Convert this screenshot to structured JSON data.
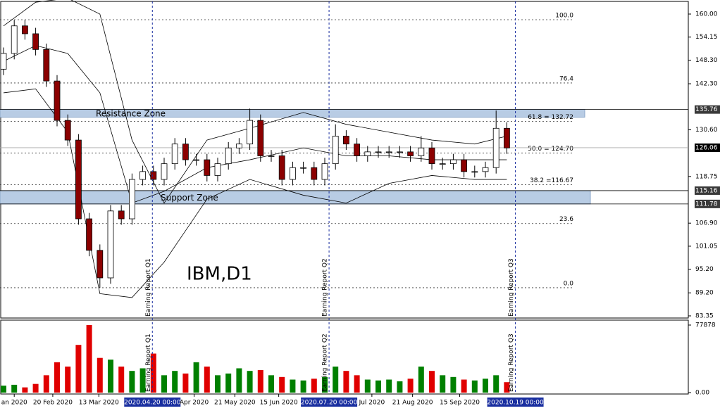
{
  "chart_data": {
    "type": "candlestick",
    "title": "IBM,D1",
    "open": [
      146,
      150,
      157,
      155,
      151,
      143,
      133,
      128,
      108,
      100,
      93,
      110,
      108,
      118,
      120,
      118,
      122,
      127,
      123,
      123,
      119,
      122,
      126,
      127,
      133,
      124,
      124,
      118,
      121,
      121,
      118,
      122,
      129,
      127,
      124,
      125,
      125,
      125,
      125,
      124,
      126,
      122,
      122,
      123,
      120,
      120,
      121,
      131
    ],
    "high": [
      151.5,
      158.5,
      158.5,
      156.5,
      152.5,
      144.5,
      134.5,
      129.5,
      109.5,
      101.5,
      111.5,
      111.5,
      119.5,
      121.5,
      121.5,
      123.5,
      128.5,
      128.5,
      124.5,
      124.5,
      123.5,
      127.5,
      128.5,
      136,
      134.5,
      125.5,
      125.5,
      122.5,
      122.5,
      122.5,
      123.5,
      132,
      130.5,
      128.5,
      126.5,
      126.5,
      126.5,
      126.5,
      126.5,
      129,
      127.5,
      123.5,
      124.5,
      124.5,
      121.5,
      122.5,
      135.5,
      132.5
    ],
    "low": [
      144.5,
      148.5,
      153.5,
      149.5,
      141.5,
      131.5,
      126.5,
      106.5,
      98.5,
      90.5,
      91.5,
      106.5,
      106.5,
      116.5,
      116.5,
      116.5,
      120.5,
      121.5,
      121.5,
      117.5,
      117.5,
      120.5,
      124.5,
      125.5,
      122.5,
      122.5,
      116.5,
      116.5,
      119.5,
      116.5,
      116.5,
      120.5,
      125.5,
      122.5,
      122.5,
      123.5,
      123.5,
      123.5,
      122.5,
      122.5,
      120.5,
      120.5,
      120.5,
      118.5,
      118.5,
      118.5,
      119.5,
      124.5
    ],
    "close": [
      150,
      157,
      155,
      151,
      143,
      133,
      128,
      108,
      100,
      93,
      110,
      108,
      118,
      120,
      118,
      122,
      127,
      123,
      123,
      119,
      122,
      126,
      127,
      133,
      124,
      124,
      118,
      121,
      121,
      118,
      122,
      129,
      127,
      124,
      125,
      125,
      125,
      125,
      124,
      126,
      122,
      122,
      123,
      120,
      120,
      121,
      131,
      126
    ],
    "volume": [
      8000,
      9000,
      6000,
      10000,
      20000,
      35000,
      30000,
      55000,
      77878,
      40000,
      38000,
      30000,
      25000,
      28000,
      45000,
      20000,
      25000,
      22000,
      35000,
      30000,
      20000,
      22000,
      28000,
      25000,
      26000,
      20000,
      18000,
      15000,
      14000,
      16000,
      18000,
      30000,
      25000,
      20000,
      15000,
      14000,
      15000,
      13000,
      16000,
      30000,
      25000,
      20000,
      18000,
      15000,
      14000,
      16000,
      20000,
      12000
    ],
    "up_color": "#008000",
    "down_color": "#e00000",
    "bands": {
      "x": [
        0,
        3,
        6,
        9,
        12,
        15,
        19,
        23,
        28,
        32,
        36,
        40,
        44,
        47
      ],
      "upper": [
        157,
        163,
        164,
        160,
        128,
        112,
        128,
        131,
        135,
        132,
        130,
        128,
        127,
        129
      ],
      "middle": [
        148,
        152,
        150,
        140,
        112,
        115,
        121,
        123,
        126,
        124,
        124,
        123,
        123,
        123
      ],
      "lower": [
        140,
        141,
        130,
        89,
        88,
        97,
        113,
        118,
        114,
        112,
        117,
        119,
        118,
        118
      ]
    },
    "ylim": [
      82.81,
      163.57
    ],
    "yticks": [
      {
        "value": 160,
        "label": "160.00"
      },
      {
        "value": 154.15,
        "label": "154.15"
      },
      {
        "value": 148.3,
        "label": "148.30"
      },
      {
        "value": 142.3,
        "label": "142.30"
      },
      {
        "value": 130.6,
        "label": "130.60"
      },
      {
        "value": 118.75,
        "label": "118.75"
      },
      {
        "value": 106.9,
        "label": "106.90"
      },
      {
        "value": 101.05,
        "label": "101.05"
      },
      {
        "value": 95.2,
        "label": "95.20"
      },
      {
        "value": 89.2,
        "label": "89.20"
      },
      {
        "value": 83.35,
        "label": "83.35"
      }
    ],
    "price_marks": [
      {
        "value": 135.76,
        "label": "135.76"
      },
      {
        "value": 126.06,
        "label": "126.06"
      },
      {
        "value": 115.16,
        "label": "115.16"
      },
      {
        "value": 111.78,
        "label": "111.78"
      }
    ],
    "fib_levels": [
      {
        "value": 158.57,
        "label": "100.0"
      },
      {
        "value": 142.5,
        "label": "76.4"
      },
      {
        "value": 132.72,
        "label": "61.8  = 132.72"
      },
      {
        "value": 124.7,
        "label": "50.0  = 124.70"
      },
      {
        "value": 116.67,
        "label": "38.2  =116.67"
      },
      {
        "value": 106.8,
        "label": "23.6"
      },
      {
        "value": 90.5,
        "label": "0.0"
      }
    ],
    "zones": [
      {
        "label": "Resistance Zone",
        "top": 135.76,
        "bottom": 133.8
      },
      {
        "label": "Support Zone",
        "top": 115.16,
        "bottom": 111.78
      }
    ],
    "events": [
      {
        "x": 13.9,
        "label": "Earning Report Q1",
        "date": "2020.04.20 00:00"
      },
      {
        "x": 30.4,
        "label": "Earning Report Q2",
        "date": "2020.07.20 00:00"
      },
      {
        "x": 47.8,
        "label": "Earning Report Q3",
        "date": "2020.10.19 00:00"
      }
    ],
    "xticks": [
      {
        "value": 1,
        "label": "an 2020"
      },
      {
        "value": 4.6,
        "label": "20 Feb 2020"
      },
      {
        "value": 8.9,
        "label": "13 Mar 2020"
      },
      {
        "value": 17.8,
        "label": "Apr 2020"
      },
      {
        "value": 21.6,
        "label": "21 May 2020"
      },
      {
        "value": 25.7,
        "label": "15 Jun 2020"
      },
      {
        "value": 34.4,
        "label": "Jul 2020"
      },
      {
        "value": 38.2,
        "label": "21 Aug 2020"
      },
      {
        "value": 42.6,
        "label": "15 Sep 2020"
      }
    ],
    "vlim": [
      0,
      83557
    ],
    "vticks": [
      77878,
      {
        "value": 0,
        "label": "0.00"
      }
    ]
  }
}
